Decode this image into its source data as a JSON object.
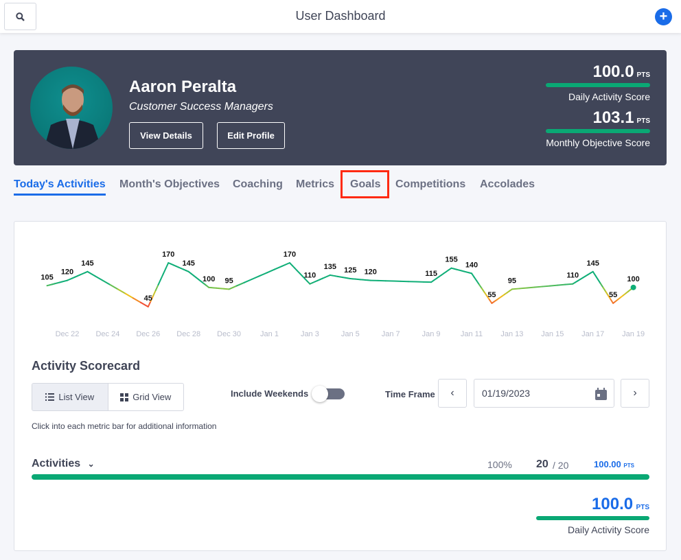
{
  "header": {
    "title": "User Dashboard",
    "search_icon": "search-icon",
    "add_icon": "plus-icon",
    "accent": "#1a6ce8"
  },
  "profile": {
    "name": "Aaron Peralta",
    "role": "Customer Success Managers",
    "view_details": "View Details",
    "edit_profile": "Edit Profile",
    "scores": [
      {
        "value": "100.0",
        "unit": "PTS",
        "label": "Daily Activity Score",
        "progress": 1.0
      },
      {
        "value": "103.1",
        "unit": "PTS",
        "label": "Monthly Objective Score",
        "progress": 1.0
      }
    ]
  },
  "tabs": [
    {
      "label": "Today's Activities",
      "active": true
    },
    {
      "label": "Month's Objectives"
    },
    {
      "label": "Coaching"
    },
    {
      "label": "Metrics"
    },
    {
      "label": "Goals",
      "highlighted": true
    },
    {
      "label": "Competitions"
    },
    {
      "label": "Accolades"
    }
  ],
  "chart_data": {
    "type": "line",
    "x": [
      "2022-12-21",
      "2022-12-22",
      "2022-12-23",
      "2022-12-26",
      "2022-12-27",
      "2022-12-28",
      "2022-12-29",
      "2022-12-30",
      "2023-01-02",
      "2023-01-03",
      "2023-01-04",
      "2023-01-05",
      "2023-01-06",
      "2023-01-09",
      "2023-01-10",
      "2023-01-11",
      "2023-01-12",
      "2023-01-13",
      "2023-01-16",
      "2023-01-17",
      "2023-01-18",
      "2023-01-19"
    ],
    "values": [
      105,
      120,
      145,
      45,
      170,
      145,
      100,
      95,
      170,
      110,
      135,
      125,
      120,
      115,
      155,
      140,
      55,
      95,
      110,
      145,
      55,
      100
    ],
    "tick_labels": [
      "Dec 22",
      "Dec 24",
      "Dec 26",
      "Dec 28",
      "Dec 30",
      "Jan 1",
      "Jan 3",
      "Jan 5",
      "Jan 7",
      "Jan 9",
      "Jan 11",
      "Jan 13",
      "Jan 15",
      "Jan 17",
      "Jan 19"
    ],
    "data_labels": true,
    "grid": false,
    "colors": {
      "high": "#0fae77",
      "mid": "#8cc63f",
      "warn": "#f5c018",
      "low": "#f0303a"
    }
  },
  "scorecard": {
    "title": "Activity Scorecard",
    "list_view": "List View",
    "grid_view": "Grid View",
    "include_weekends": "Include Weekends",
    "include_weekends_on": false,
    "time_frame": "Time Frame",
    "date": "01/19/2023",
    "hint": "Click into each metric bar for additional information",
    "activities": {
      "label": "Activities",
      "percent": "100%",
      "count": "20",
      "total": "/ 20",
      "points": "100.00",
      "unit": "PTS",
      "progress": 1.0
    },
    "summary": {
      "value": "100.0",
      "unit": "PTS",
      "label": "Daily Activity Score"
    }
  }
}
